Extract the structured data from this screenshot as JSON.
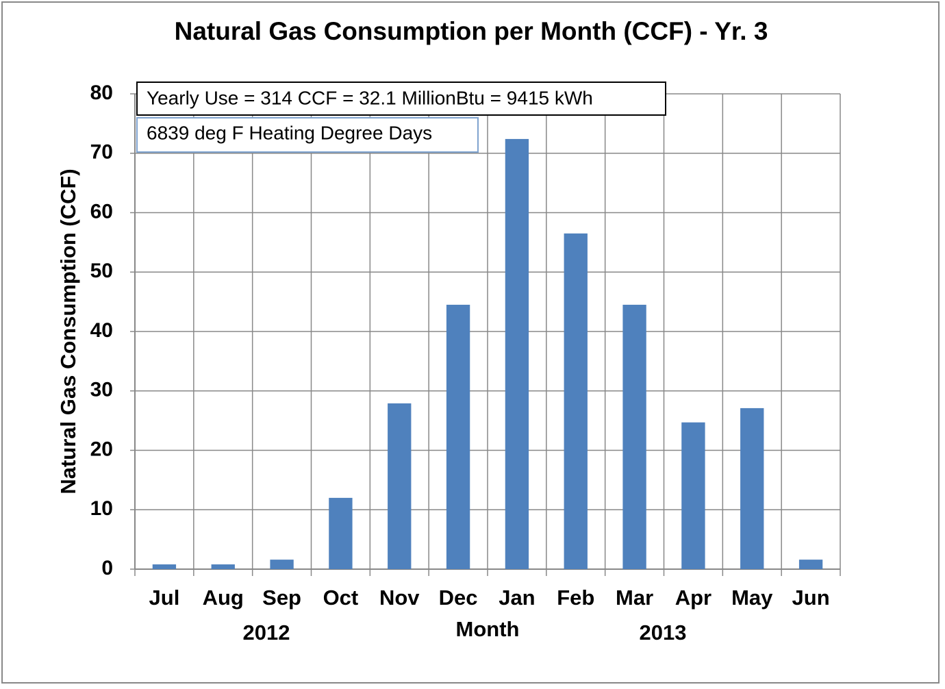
{
  "chart_data": {
    "type": "bar",
    "title": "Natural Gas Consumption per Month (CCF) - Yr. 3",
    "y_label": "Natural Gas Consumption (CCF)",
    "x_label": "Month",
    "annotations": [
      "Yearly Use = 314 CCF = 32.1 MillionBtu = 9415 kWh",
      "6839 deg F Heating Degree Days"
    ],
    "year_labels": [
      "2012",
      "2013"
    ],
    "categories": [
      "Jul",
      "Aug",
      "Sep",
      "Oct",
      "Nov",
      "Dec",
      "Jan",
      "Feb",
      "Mar",
      "Apr",
      "May",
      "Jun"
    ],
    "values": [
      0.8,
      0.8,
      1.6,
      12,
      27.9,
      44.5,
      72.4,
      56.5,
      44.5,
      24.7,
      27.1,
      1.6
    ],
    "color": "#4f81bd",
    "ylim": [
      0,
      80
    ],
    "yticks": [
      0,
      10,
      20,
      30,
      40,
      50,
      60,
      70,
      80
    ],
    "grid": true
  }
}
